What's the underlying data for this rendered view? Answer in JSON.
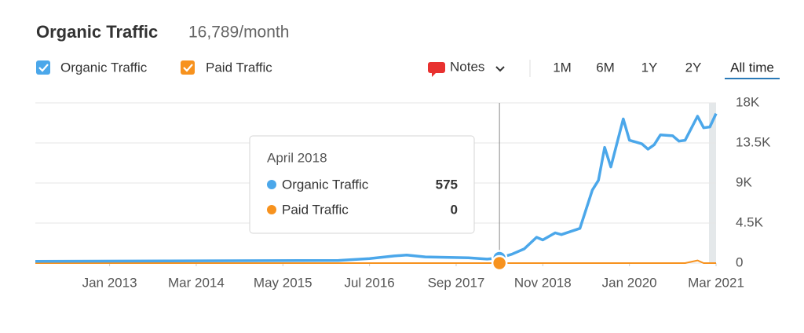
{
  "chart_data": {
    "type": "line",
    "title": "Organic Traffic",
    "subtitle": "16,789/month",
    "x": [
      "2012-01",
      "2016-02",
      "2016-07",
      "2016-11",
      "2017-01",
      "2017-04",
      "2017-11",
      "2018-02",
      "2018-04",
      "2018-06",
      "2018-08",
      "2018-10",
      "2018-11",
      "2019-01",
      "2019-02",
      "2019-05",
      "2019-07",
      "2019-08",
      "2019-09",
      "2019-10",
      "2019-12",
      "2020-01",
      "2020-03",
      "2020-04",
      "2020-05",
      "2020-06",
      "2020-08",
      "2020-09",
      "2020-10",
      "2020-12",
      "2021-01",
      "2021-02",
      "2021-03"
    ],
    "series": [
      {
        "name": "Organic Traffic",
        "color": "#4ba7ea",
        "values": [
          200,
          300,
          500,
          800,
          900,
          700,
          600,
          450,
          575,
          1000,
          1600,
          2900,
          2600,
          3400,
          3200,
          3900,
          8200,
          9300,
          13000,
          10800,
          16200,
          13800,
          13400,
          12800,
          13300,
          14400,
          14300,
          13700,
          13800,
          16500,
          15200,
          15300,
          16800
        ]
      },
      {
        "name": "Paid Traffic",
        "color": "#f7921e",
        "values": [
          0,
          0,
          0,
          0,
          0,
          0,
          0,
          0,
          0,
          0,
          0,
          0,
          0,
          0,
          0,
          0,
          0,
          0,
          0,
          0,
          0,
          0,
          0,
          0,
          0,
          0,
          0,
          0,
          0,
          300,
          0,
          0,
          0
        ]
      }
    ],
    "xlim": [
      "2012-01",
      "2021-03"
    ],
    "xticks": [
      {
        "value": "2013-01",
        "label": "Jan 2013"
      },
      {
        "value": "2014-03",
        "label": "Mar 2014"
      },
      {
        "value": "2015-05",
        "label": "May 2015"
      },
      {
        "value": "2016-07",
        "label": "Jul 2016"
      },
      {
        "value": "2017-09",
        "label": "Sep 2017"
      },
      {
        "value": "2018-11",
        "label": "Nov 2018"
      },
      {
        "value": "2020-01",
        "label": "Jan 2020"
      },
      {
        "value": "2021-03",
        "label": "Mar 2021"
      }
    ],
    "ylim": [
      0,
      18000
    ],
    "yticks": [
      0,
      {
        "value": 4500,
        "label": "4.5K"
      },
      {
        "value": 9000,
        "label": "9K"
      },
      {
        "value": 13500,
        "label": "13.5K"
      },
      {
        "value": 18000,
        "label": "18K"
      }
    ],
    "grid": true,
    "tooltip": {
      "title": "April 2018"
    },
    "notes": "Notes",
    "ranges": [
      "1M",
      "6M",
      "1Y",
      "2Y",
      "All time"
    ],
    "active_range": 4
  }
}
